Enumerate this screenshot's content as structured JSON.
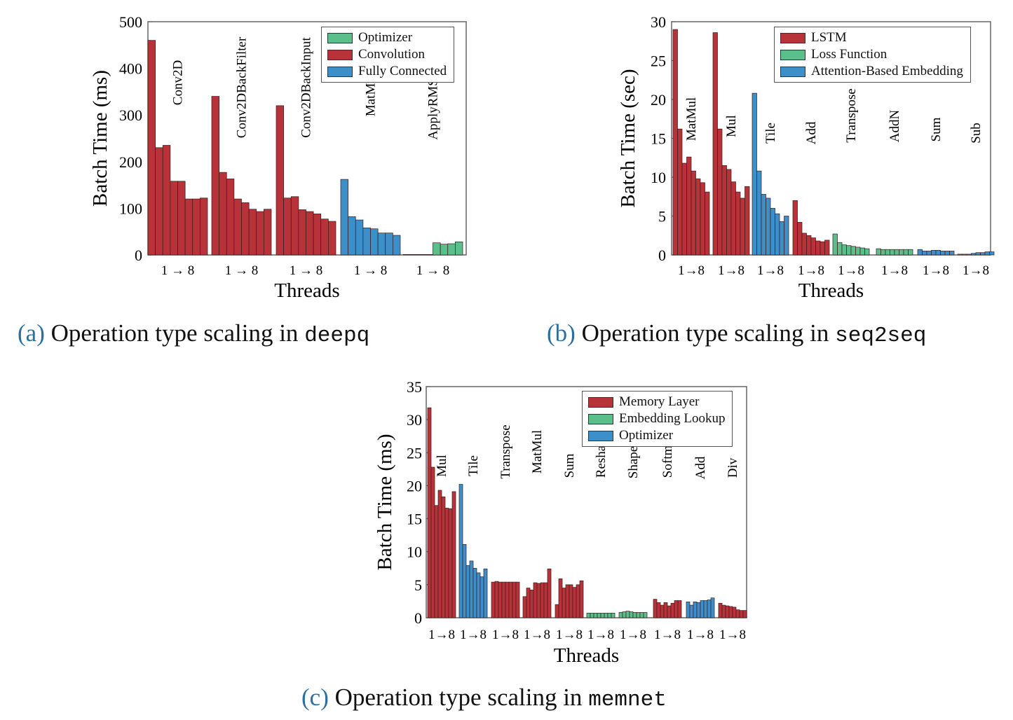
{
  "colors": {
    "red": "#b8323a",
    "green": "#5bbf8c",
    "blue": "#3d8fc9",
    "caption_label": "#2a6f9f"
  },
  "captions": {
    "a": {
      "label": "(a)",
      "text": "Operation type scaling in ",
      "code": "deepq"
    },
    "b": {
      "label": "(b)",
      "text": "Operation type scaling in ",
      "code": "seq2seq"
    },
    "c": {
      "label": "(c)",
      "text": "Operation type scaling in ",
      "code": "memnet"
    }
  },
  "chart_data": [
    {
      "type": "bar",
      "xlabel": "Threads",
      "ylabel": "Batch Time (ms)",
      "ylim": [
        0,
        500
      ],
      "yticks": [
        0,
        100,
        200,
        300,
        400,
        500
      ],
      "range_label": "1 → 8",
      "legend": [
        {
          "name": "Optimizer",
          "color": "green"
        },
        {
          "name": "Convolution",
          "color": "red"
        },
        {
          "name": "Fully Connected",
          "color": "blue"
        }
      ],
      "groups": [
        {
          "name": "Conv2D",
          "category": "Convolution",
          "values": [
            460,
            230,
            235,
            158,
            158,
            120,
            120,
            122
          ]
        },
        {
          "name": "Conv2DBackFilter",
          "category": "Convolution",
          "values": [
            340,
            177,
            163,
            120,
            112,
            98,
            93,
            98
          ]
        },
        {
          "name": "Conv2DBackInput",
          "category": "Convolution",
          "values": [
            320,
            122,
            125,
            97,
            93,
            88,
            77,
            72
          ]
        },
        {
          "name": "MatMul",
          "category": "Fully Connected",
          "values": [
            162,
            82,
            75,
            58,
            56,
            47,
            47,
            42
          ]
        },
        {
          "name": "ApplyRMSProp",
          "category": "Optimizer",
          "values": [
            1,
            1,
            1,
            1,
            26,
            23,
            24,
            28
          ]
        }
      ]
    },
    {
      "type": "bar",
      "xlabel": "Threads",
      "ylabel": "Batch Time (sec)",
      "ylim": [
        0,
        30
      ],
      "yticks": [
        0,
        5,
        10,
        15,
        20,
        25,
        30
      ],
      "range_label": "1→8",
      "legend": [
        {
          "name": "LSTM",
          "color": "red"
        },
        {
          "name": "Loss Function",
          "color": "green"
        },
        {
          "name": "Attention-Based Embedding",
          "color": "blue"
        }
      ],
      "groups": [
        {
          "name": "MatMul",
          "category": "LSTM",
          "values": [
            29,
            16.2,
            11.8,
            12.6,
            10.8,
            9.8,
            9.3,
            8.1
          ]
        },
        {
          "name": "Mul",
          "category": "LSTM",
          "values": [
            28.6,
            16.2,
            11.5,
            11,
            9.4,
            8.1,
            7.3,
            8.8
          ]
        },
        {
          "name": "Tile",
          "category": "Attention-Based Embedding",
          "values": [
            20.8,
            10.8,
            7.8,
            7.3,
            6,
            5.3,
            4.3,
            5
          ]
        },
        {
          "name": "Add",
          "category": "LSTM",
          "values": [
            7,
            4.2,
            2.8,
            2.5,
            2.2,
            1.8,
            1.7,
            1.9
          ]
        },
        {
          "name": "Transpose",
          "category": "Loss Function",
          "values": [
            2.7,
            1.6,
            1.3,
            1.2,
            1.1,
            1,
            0.9,
            0.8
          ]
        },
        {
          "name": "AddN",
          "category": "Loss Function",
          "values": [
            0.8,
            0.7,
            0.7,
            0.7,
            0.7,
            0.7,
            0.7,
            0.7
          ]
        },
        {
          "name": "Sum",
          "category": "Attention-Based Embedding",
          "values": [
            0.7,
            0.5,
            0.5,
            0.6,
            0.6,
            0.5,
            0.5,
            0.5
          ]
        },
        {
          "name": "Sub",
          "category": "Attention-Based Embedding",
          "values": [
            0.1,
            0.1,
            0.1,
            0.2,
            0.3,
            0.3,
            0.4,
            0.4
          ]
        }
      ]
    },
    {
      "type": "bar",
      "xlabel": "Threads",
      "ylabel": "Batch Time (ms)",
      "ylim": [
        0,
        35
      ],
      "yticks": [
        0,
        5,
        10,
        15,
        20,
        25,
        30,
        35
      ],
      "range_label": "1→8",
      "legend": [
        {
          "name": "Memory Layer",
          "color": "red"
        },
        {
          "name": "Embedding Lookup",
          "color": "green"
        },
        {
          "name": "Optimizer",
          "color": "blue"
        }
      ],
      "groups": [
        {
          "name": "Mul",
          "category": "Memory Layer",
          "values": [
            31.8,
            22.8,
            17,
            19.3,
            18.3,
            16.6,
            16.5,
            19.1
          ]
        },
        {
          "name": "Tile",
          "category": "Optimizer",
          "values": [
            20.2,
            11.1,
            7.9,
            8.6,
            7.5,
            6.8,
            6.2,
            7.4
          ]
        },
        {
          "name": "Transpose",
          "category": "Memory Layer",
          "values": [
            5.4,
            5.5,
            5.4,
            5.4,
            5.4,
            5.4,
            5.4,
            5.4
          ]
        },
        {
          "name": "MatMul",
          "category": "Memory Layer",
          "values": [
            3.2,
            4.5,
            4.2,
            5.3,
            5.2,
            5.3,
            5.3,
            7.4
          ]
        },
        {
          "name": "Sum",
          "category": "Memory Layer",
          "values": [
            2,
            5.9,
            4.5,
            5,
            5,
            4.6,
            5,
            5.6
          ]
        },
        {
          "name": "Reshape",
          "category": "Embedding Lookup",
          "values": [
            0.7,
            0.7,
            0.7,
            0.7,
            0.7,
            0.7,
            0.7,
            0.7
          ]
        },
        {
          "name": "Shape",
          "category": "Embedding Lookup",
          "values": [
            0.8,
            0.9,
            1,
            0.9,
            0.8,
            0.8,
            0.8,
            0.8
          ]
        },
        {
          "name": "Softmax",
          "category": "Memory Layer",
          "values": [
            2.8,
            2.3,
            1.9,
            2.3,
            1.8,
            2.2,
            2.6,
            2.6
          ]
        },
        {
          "name": "Add",
          "category": "Optimizer",
          "values": [
            2.4,
            1.9,
            2.4,
            2.3,
            2.6,
            2.6,
            2.7,
            3
          ]
        },
        {
          "name": "Div",
          "category": "Memory Layer",
          "values": [
            2.2,
            1.9,
            1.8,
            1.7,
            1.6,
            1.2,
            1.1,
            1.1
          ]
        }
      ]
    }
  ]
}
